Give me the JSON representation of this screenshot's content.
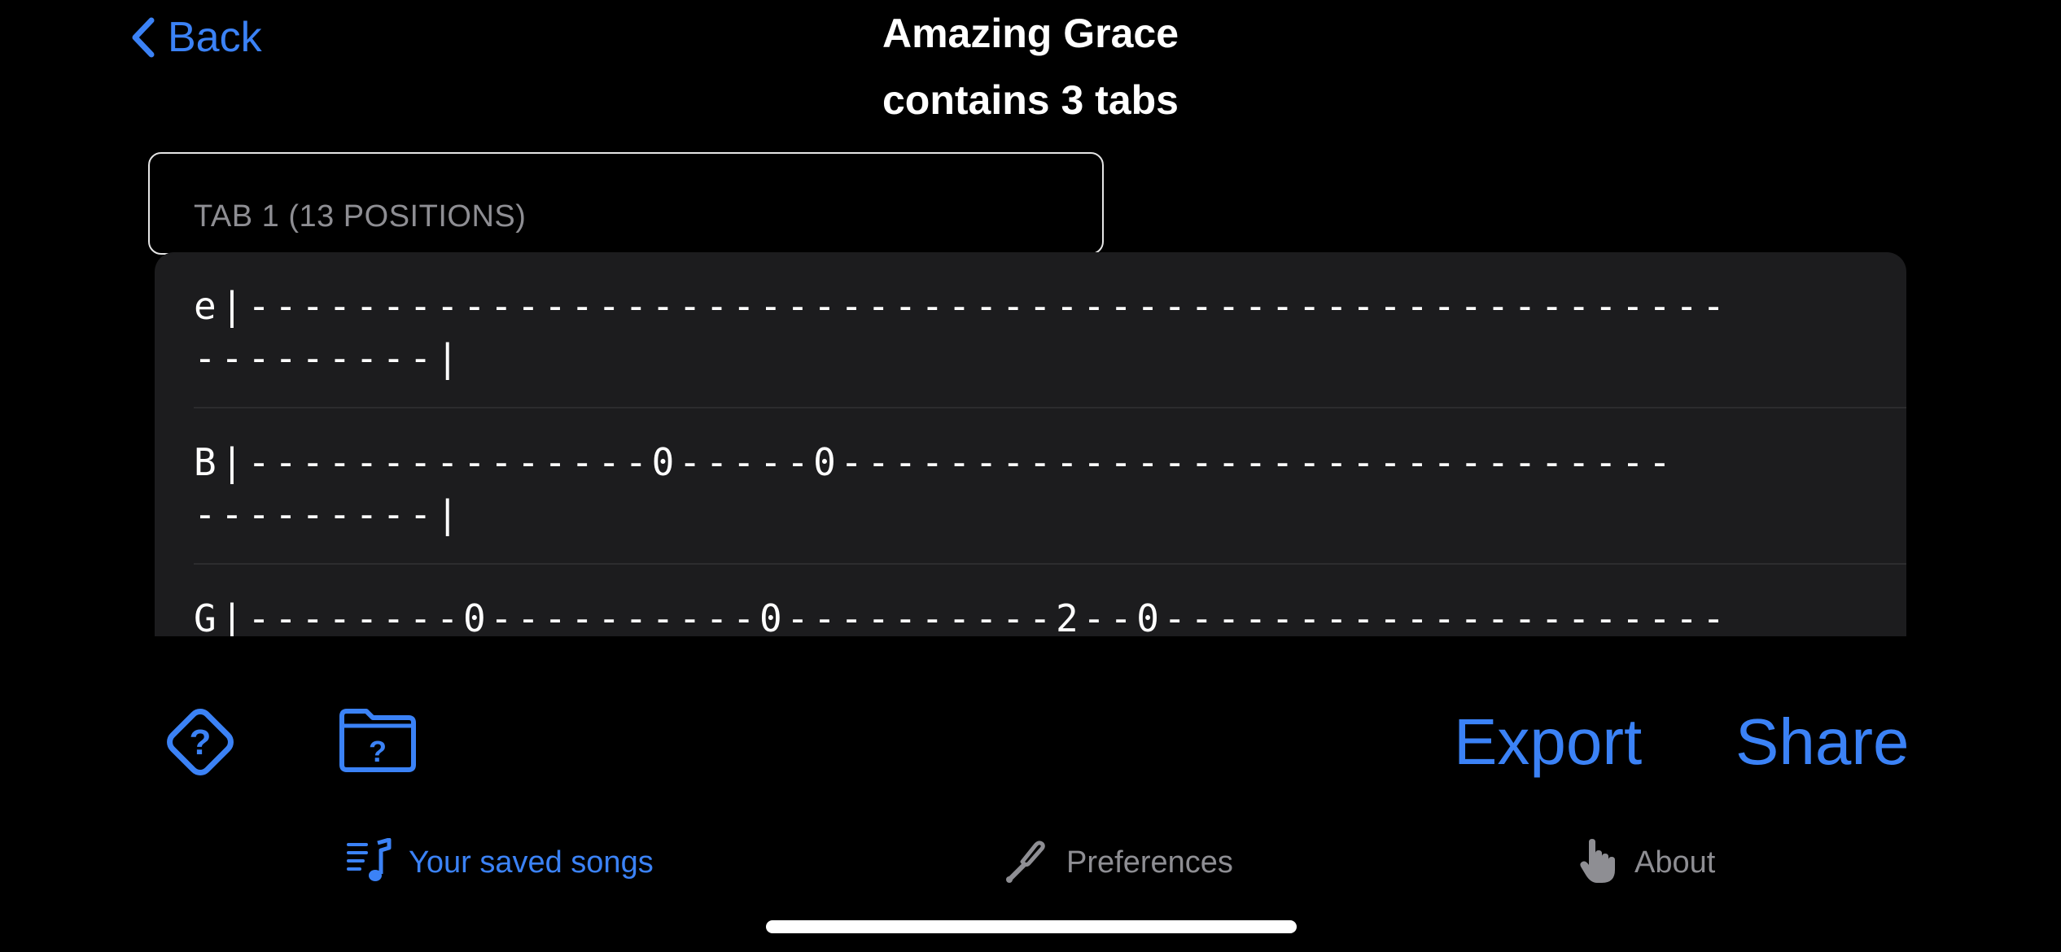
{
  "header": {
    "back_label": "Back",
    "title": "Amazing Grace",
    "subtitle": "contains 3 tabs"
  },
  "tab_selector": {
    "label": "TAB 1 (13 POSITIONS)"
  },
  "tab_rows": [
    {
      "line1": "e|-------------------------------------------------------",
      "line2": "---------|"
    },
    {
      "line1": "B|---------------0-----0-------------------------------",
      "line2": "---------|"
    },
    {
      "line1": "G|--------0----------0----------2--0---------------------",
      "line2": ""
    }
  ],
  "toolbar": {
    "help_icon": "diamond-question-icon",
    "folder_icon": "folder-question-icon",
    "export_label": "Export",
    "share_label": "Share"
  },
  "tab_bar": {
    "items": [
      {
        "label": "Your saved songs",
        "icon": "music-list-icon",
        "active": true
      },
      {
        "label": "Preferences",
        "icon": "tuning-fork-icon",
        "active": false
      },
      {
        "label": "About",
        "icon": "hand-pointer-icon",
        "active": false
      }
    ]
  },
  "colors": {
    "accent": "#3b82f6",
    "background": "#000000",
    "card": "#1c1c1e",
    "inactive": "#8e8e93"
  }
}
